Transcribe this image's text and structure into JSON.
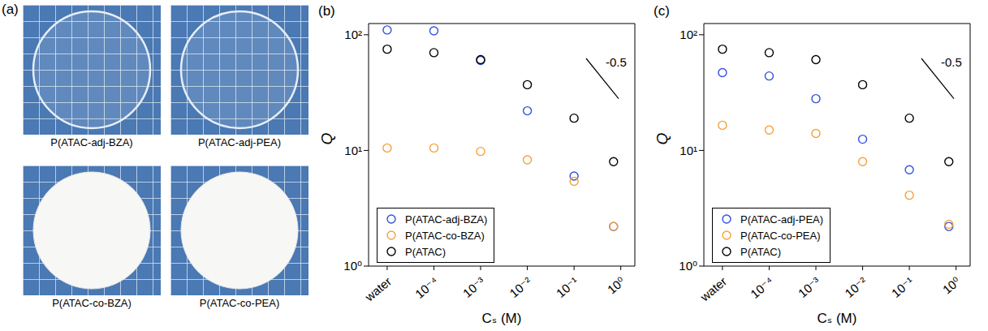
{
  "panel_a": {
    "letter": "(a)",
    "captions": [
      "P(ATAC-adj-BZA)",
      "P(ATAC-adj-PEA)",
      "P(ATAC-co-BZA)",
      "P(ATAC-co-PEA)"
    ]
  },
  "chart_data": [
    {
      "panel": "(b)",
      "type": "scatter",
      "x_label": "Cₛ (M)",
      "y_label": "Q",
      "log": true,
      "legend": "lower left",
      "marker": "circle",
      "x": [
        1e-05,
        0.0001,
        0.001,
        0.01,
        0.1,
        0.7
      ],
      "xlim": [
        4e-06,
        2
      ],
      "xticks": [
        {
          "value": 1e-05,
          "label": "water"
        },
        {
          "value": 0.0001,
          "label": "10⁻⁴"
        },
        {
          "value": 0.001,
          "label": "10⁻³"
        },
        {
          "value": 0.01,
          "label": "10⁻²"
        },
        {
          "value": 0.1,
          "label": "10⁻¹"
        },
        {
          "value": 1,
          "label": "10⁰"
        }
      ],
      "ylim": [
        1,
        125
      ],
      "yticks": [
        {
          "value": 1,
          "label": "10⁰"
        },
        {
          "value": 10,
          "label": "10¹"
        },
        {
          "value": 100,
          "label": "10²"
        }
      ],
      "annotations": [
        {
          "text": "-0.5",
          "slope": -0.5
        }
      ],
      "series": [
        {
          "name": "P(ATAC-adj-BZA)",
          "color": "#2f52e0",
          "values": [
            110,
            108,
            60,
            22,
            6,
            2.2
          ]
        },
        {
          "name": "P(ATAC-co-BZA)",
          "color": "#f5a13a",
          "values": [
            10.5,
            10.5,
            9.8,
            8.3,
            5.4,
            2.2
          ]
        },
        {
          "name": "P(ATAC)",
          "color": "#000000",
          "values": [
            75,
            70,
            61,
            37,
            19,
            8
          ]
        }
      ]
    },
    {
      "panel": "(c)",
      "type": "scatter",
      "x_label": "Cₛ (M)",
      "y_label": "Q",
      "log": true,
      "legend": "lower left",
      "marker": "circle",
      "x": [
        1e-05,
        0.0001,
        0.001,
        0.01,
        0.1,
        0.7
      ],
      "xlim": [
        4e-06,
        2
      ],
      "xticks": [
        {
          "value": 1e-05,
          "label": "water"
        },
        {
          "value": 0.0001,
          "label": "10⁻⁴"
        },
        {
          "value": 0.001,
          "label": "10⁻³"
        },
        {
          "value": 0.01,
          "label": "10⁻²"
        },
        {
          "value": 0.1,
          "label": "10⁻¹"
        },
        {
          "value": 1,
          "label": "10⁰"
        }
      ],
      "ylim": [
        1,
        125
      ],
      "yticks": [
        {
          "value": 1,
          "label": "10⁰"
        },
        {
          "value": 10,
          "label": "10¹"
        },
        {
          "value": 100,
          "label": "10²"
        }
      ],
      "annotations": [
        {
          "text": "-0.5",
          "slope": -0.5
        }
      ],
      "series": [
        {
          "name": "P(ATAC-adj-PEA)",
          "color": "#2f52e0",
          "values": [
            47,
            44,
            28,
            12.5,
            6.8,
            2.2
          ]
        },
        {
          "name": "P(ATAC-co-PEA)",
          "color": "#f5a13a",
          "values": [
            16.5,
            15,
            14,
            8,
            4.1,
            2.3
          ]
        },
        {
          "name": "P(ATAC)",
          "color": "#000000",
          "values": [
            75,
            70,
            61,
            37,
            19,
            8
          ]
        }
      ]
    }
  ]
}
